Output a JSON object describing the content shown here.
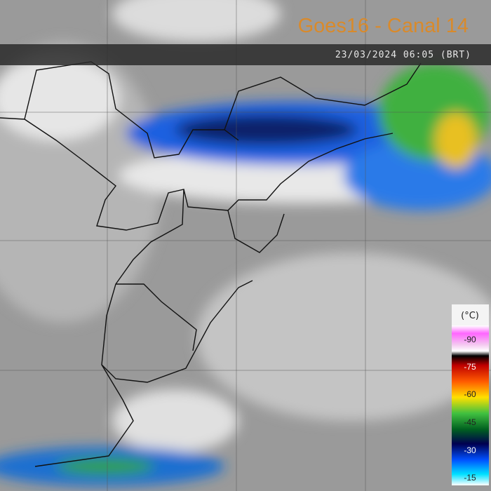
{
  "header": {
    "title": "Goes16 - Canal 14",
    "timestamp": "23/03/2024 06:05 (BRT)"
  },
  "legend": {
    "unit": "(°C)",
    "labels": [
      "-90",
      "-75",
      "-60",
      "-45",
      "-30",
      "-15"
    ]
  }
}
